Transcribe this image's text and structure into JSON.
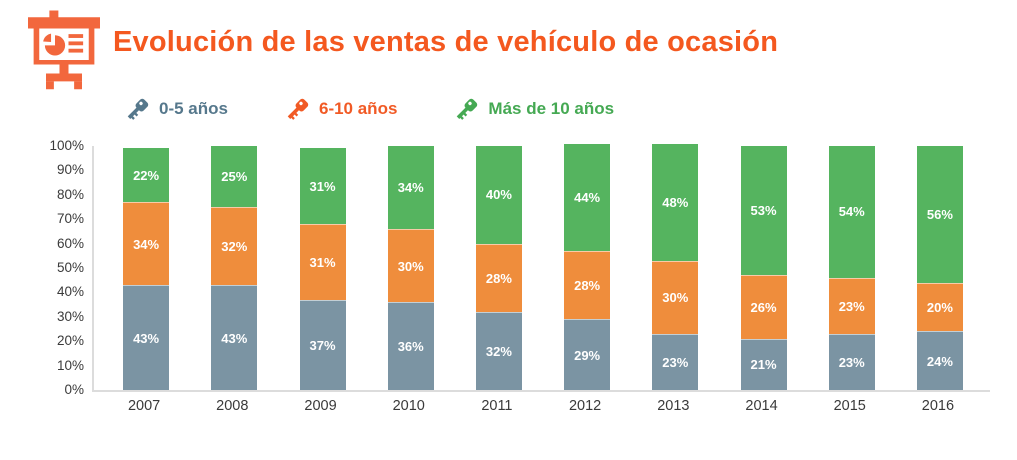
{
  "header": {
    "title": "Evolución de las ventas de vehículo de ocasión",
    "title_color": "#F4581F",
    "icon": "presentation-pie-chart-icon",
    "icon_color": "#F2673D"
  },
  "legend": {
    "items": [
      {
        "label": "0-5 años",
        "color": "#56788C",
        "icon": "car-key-icon"
      },
      {
        "label": "6-10 años",
        "color": "#F15A25",
        "icon": "car-key-icon"
      },
      {
        "label": "Más de 10 años",
        "color": "#45A953",
        "icon": "car-key-icon"
      }
    ]
  },
  "chart_data": {
    "type": "bar",
    "stacked": true,
    "title": "Evolución de las ventas de vehículo de ocasión",
    "categories": [
      "2007",
      "2008",
      "2009",
      "2010",
      "2011",
      "2012",
      "2013",
      "2014",
      "2015",
      "2016"
    ],
    "series": [
      {
        "name": "0-5 años",
        "color": "#7B94A3",
        "values": [
          43,
          43,
          37,
          36,
          32,
          29,
          23,
          21,
          23,
          24
        ]
      },
      {
        "name": "6-10 años",
        "color": "#EF8D3C",
        "values": [
          34,
          32,
          31,
          30,
          28,
          28,
          30,
          26,
          23,
          20
        ]
      },
      {
        "name": "Más de 10 años",
        "color": "#55B45F",
        "values": [
          22,
          25,
          31,
          34,
          40,
          44,
          48,
          53,
          54,
          56
        ]
      }
    ],
    "value_suffix": "%",
    "xlabel": "",
    "ylabel": "",
    "ylim": [
      0,
      100
    ],
    "y_ticks": [
      "0%",
      "10%",
      "20%",
      "30%",
      "40%",
      "50%",
      "60%",
      "70%",
      "80%",
      "90%",
      "100%"
    ],
    "grid": false,
    "legend_position": "top",
    "axis_line_color": "#DCDCDC"
  }
}
